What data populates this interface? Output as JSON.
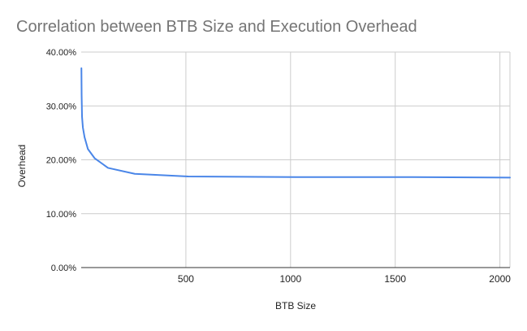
{
  "chart_data": {
    "type": "line",
    "title": "Correlation between BTB Size and Execution Overhead",
    "xlabel": "BTB Size",
    "ylabel": "Overhead",
    "xlim": [
      0,
      2048
    ],
    "ylim": [
      0,
      40
    ],
    "x_ticks": [
      500,
      1000,
      1500,
      2000
    ],
    "x_tick_labels": [
      "500",
      "1000",
      "1500",
      "2000"
    ],
    "y_ticks": [
      0,
      10,
      20,
      30,
      40
    ],
    "y_tick_labels": [
      "0.00%",
      "10.00%",
      "20.00%",
      "30.00%",
      "40.00%"
    ],
    "grid": true,
    "legend": "none",
    "series": [
      {
        "color": "#4a86e8",
        "x": [
          1,
          2,
          4,
          8,
          16,
          32,
          64,
          128,
          256,
          512,
          1024,
          1536,
          2048
        ],
        "y": [
          37.0,
          32.0,
          28.0,
          26.0,
          24.2,
          22.0,
          20.3,
          18.5,
          17.4,
          16.9,
          16.8,
          16.8,
          16.7
        ]
      }
    ]
  },
  "colors": {
    "title": "#757575",
    "axis_text": "#222222",
    "grid": "#cccccc",
    "axis_line": "#333333"
  }
}
